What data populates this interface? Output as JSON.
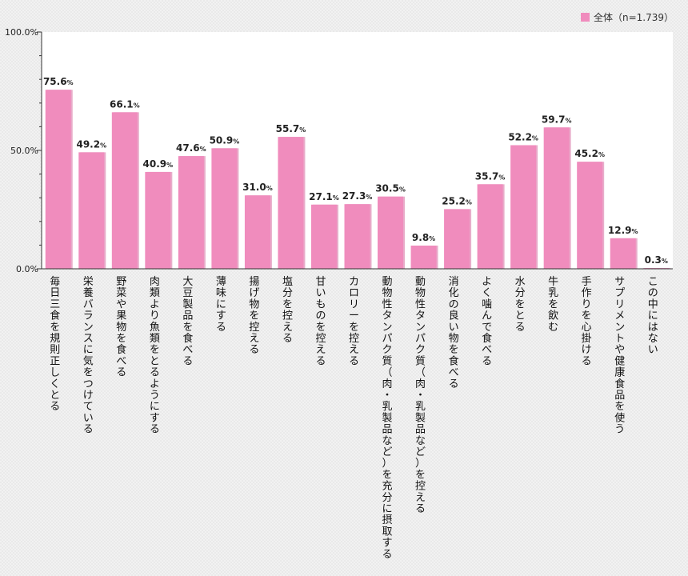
{
  "chart_data": {
    "type": "bar",
    "categories": [
      "毎日三食を規則正しくとる",
      "栄養バランスに気をつけている",
      "野菜や果物を食べる",
      "肉類より魚類をとるようにする",
      "大豆製品を食べる",
      "薄味にする",
      "揚げ物を控える",
      "塩分を控える",
      "甘いものを控える",
      "カロリーを控える",
      "動物性タンパク質（肉・乳製品など）を充分に摂取する",
      "動物性タンパク質（肉・乳製品など）を控える",
      "消化の良い物を食べる",
      "よく噛んで食べる",
      "水分をとる",
      "牛乳を飲む",
      "手作りを心掛ける",
      "サプリメントや健康食品を使う",
      "この中にはない"
    ],
    "series": [
      {
        "name": "全体（n=1.739）",
        "values": [
          75.6,
          49.2,
          66.1,
          40.9,
          47.6,
          50.9,
          31.0,
          55.7,
          27.1,
          27.3,
          30.5,
          9.8,
          25.2,
          35.7,
          52.2,
          59.7,
          45.2,
          12.9,
          0.3
        ]
      }
    ],
    "ylim": [
      0,
      100
    ],
    "yticks": [
      "0.0%",
      "50.0%",
      "100.0%"
    ],
    "value_suffix": "%",
    "legend_position": "top-right",
    "grid": false
  },
  "colors": {
    "bar": "#f08cbd",
    "bar_edge": "#d66a9f",
    "axis": "#333333"
  }
}
